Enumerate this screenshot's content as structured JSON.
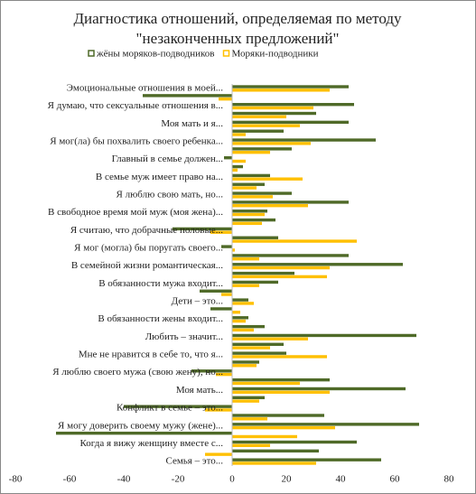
{
  "chart_data": {
    "type": "bar",
    "orientation": "horizontal",
    "title": [
      "Диагностика отношений, определяемая по методу",
      "\"незаконченных предложений\""
    ],
    "legend": "top",
    "categories": [
      "Эмоциональные отношения в моей...",
      null,
      "Я думаю, что сексуальные отношения в...",
      null,
      "Моя мать и я...",
      null,
      "Я мог(ла) бы похвалить своего ребенка...",
      null,
      "Главный в семье должен...",
      null,
      "В семье муж имеет право на...",
      null,
      "Я люблю свою мать, но...",
      null,
      "В свободное время мой муж (моя жена)...",
      null,
      "Я считаю, что добрачные половые...",
      null,
      "Я мог (могла) бы поругать своего...",
      null,
      "В семейной жизни романтическая...",
      null,
      "В обязанности мужа входит...",
      null,
      "Дети – это...",
      null,
      "В обязанности жены входит...",
      null,
      "Любить – значит...",
      null,
      "Мне не нравится в себе то, что я...",
      null,
      "Я люблю своего мужа (свою жену), но...",
      null,
      "Моя мать...",
      null,
      "Конфликт в семье – это...",
      null,
      "Я могу доверить своему мужу (жене)...",
      null,
      "Когда я вижу женщину вместе с...",
      null,
      "Семья – это..."
    ],
    "series": [
      {
        "name": "жёны моряков-подводников",
        "color": "#4f6a28",
        "values": [
          43,
          -33,
          45,
          31,
          43,
          19,
          53,
          22,
          -3,
          4,
          14,
          12,
          22,
          43,
          13,
          16,
          -22,
          17,
          -4,
          43,
          63,
          23,
          17,
          -12,
          6,
          -8,
          6,
          12,
          68,
          19,
          20,
          10,
          -15,
          36,
          64,
          12,
          -40,
          34,
          69,
          -65,
          46,
          32,
          55
        ]
      },
      {
        "name": "Моряки-подводники",
        "color": "#ffc000",
        "values": [
          36,
          -5,
          30,
          20,
          25,
          5,
          29,
          14,
          5,
          2,
          26,
          9,
          15,
          28,
          12,
          11,
          -8,
          46,
          1,
          10,
          36,
          35,
          10,
          -4,
          8,
          3,
          5,
          8,
          28,
          14,
          35,
          9,
          -6,
          25,
          36,
          10,
          -10,
          13,
          38,
          24,
          14,
          -10,
          31
        ]
      }
    ],
    "xlim": [
      -80,
      80
    ],
    "xticks": [
      -80,
      -60,
      -40,
      -20,
      0,
      20,
      40,
      60,
      80
    ],
    "grid": false
  }
}
